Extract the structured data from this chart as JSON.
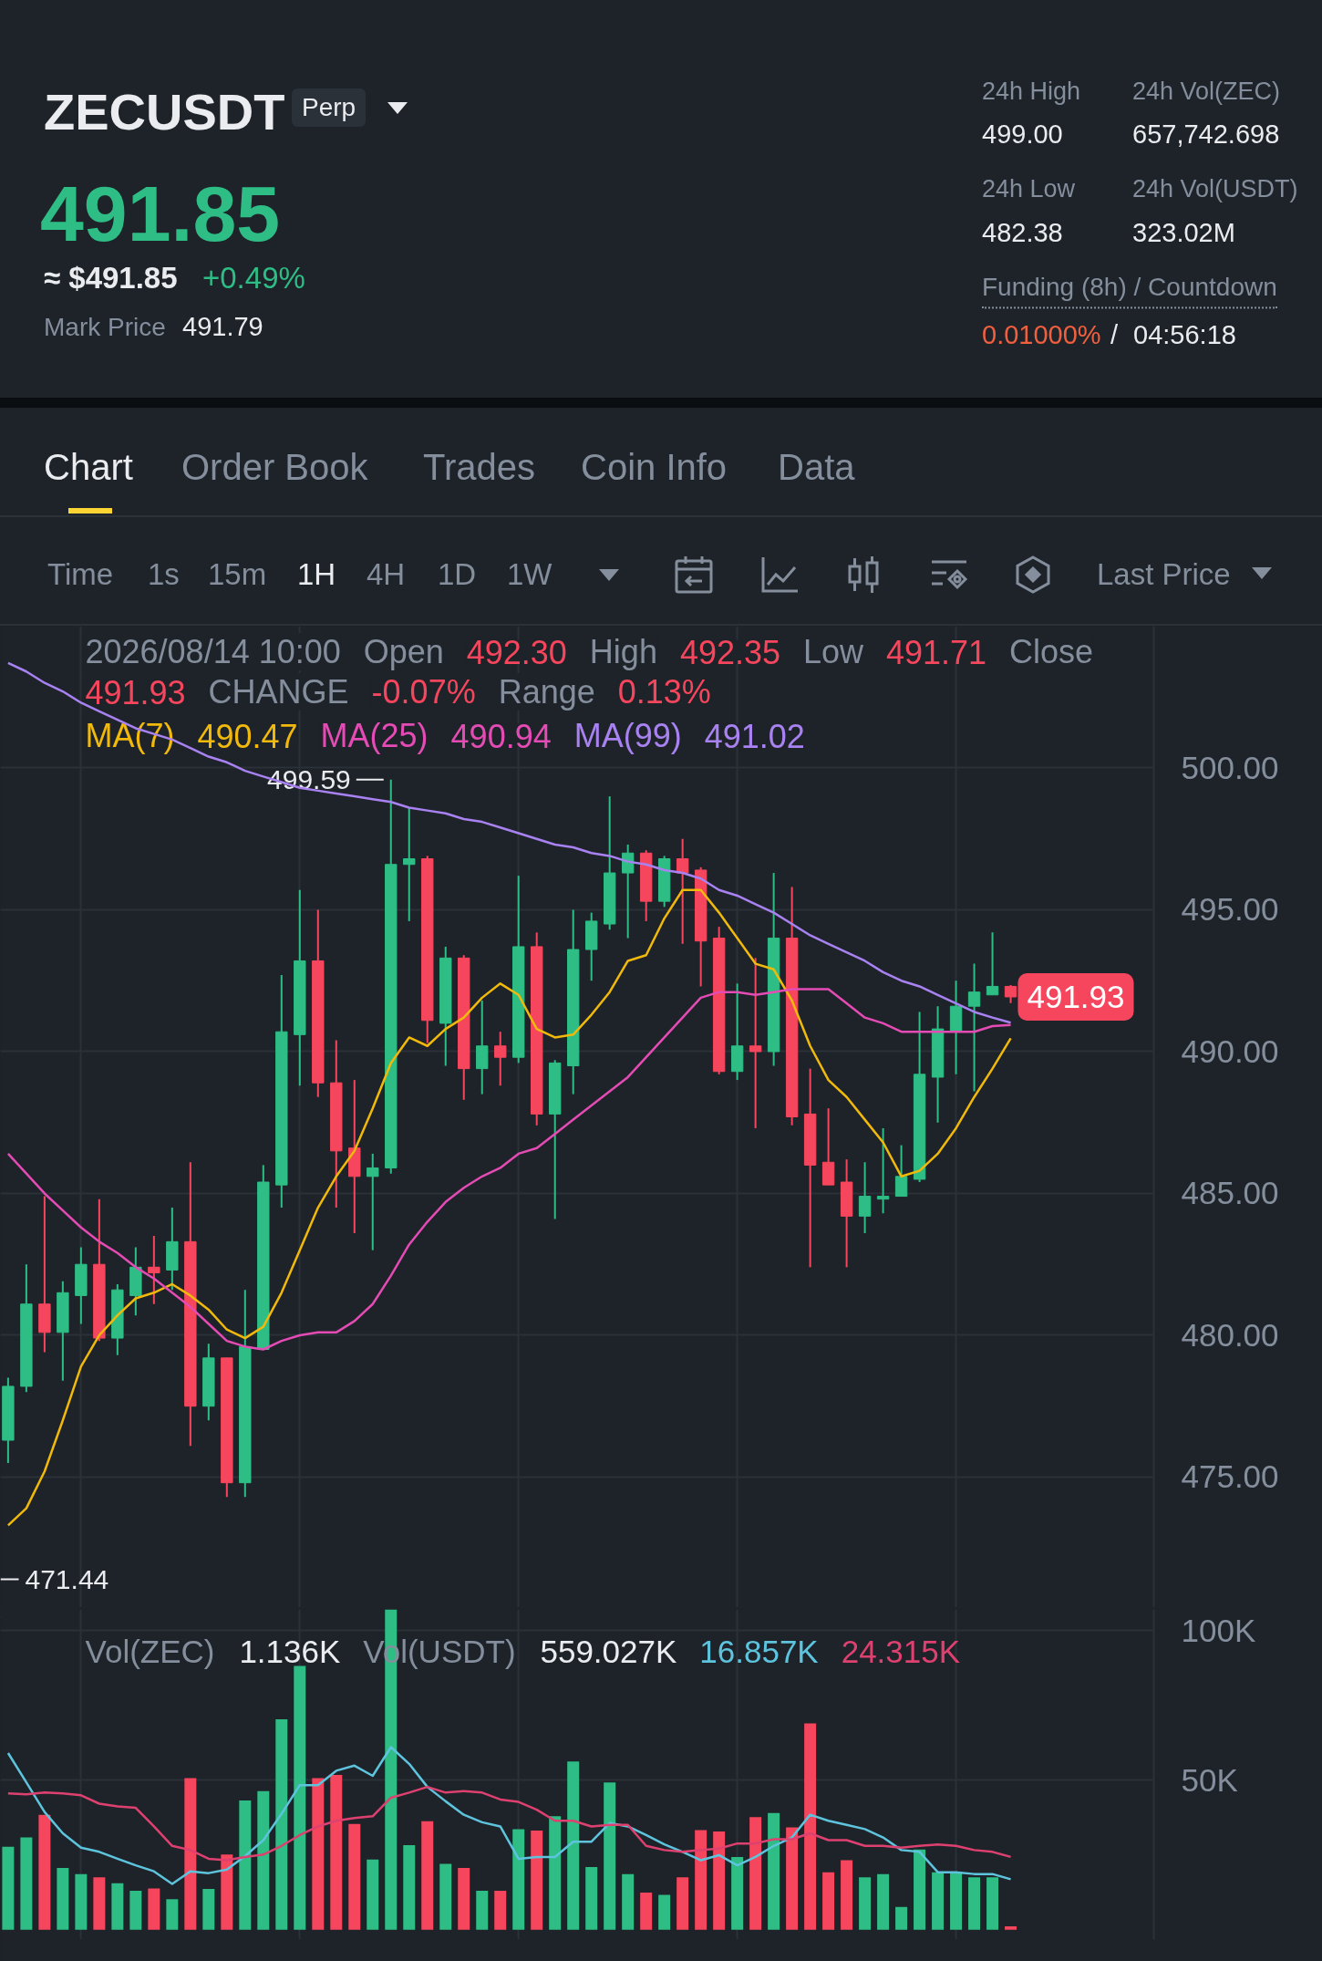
{
  "chart_data": [
    {
      "type": "other",
      "title": "ZECUSDT",
      "annotations": [
        "Perp",
        "491.85",
        "≈ $491.85",
        "+0.49%",
        "Mark Price",
        "491.79",
        "24h High",
        "499.00",
        "24h Vol(ZEC)",
        "657,742.698",
        "24h Low",
        "482.38",
        "24h Vol(USDT)",
        "323.02M",
        "Funding (8h) / Countdown",
        "0.01000%",
        "/",
        "04:56:18",
        "Chart",
        "Order Book",
        "Trades",
        "Coin Info",
        "Data",
        "Time",
        "1s",
        "15m",
        "1H",
        "4H",
        "1D",
        "1W",
        "Last Price"
      ]
    },
    {
      "type": "candlestick",
      "categories": [
        null,
        null,
        null,
        null,
        null,
        null,
        null,
        null,
        null,
        null,
        null,
        null,
        null,
        null,
        null,
        null,
        null,
        null,
        null,
        null,
        null,
        null,
        null,
        null,
        null,
        null,
        null,
        null,
        null,
        null,
        null,
        null,
        null,
        null,
        null,
        null,
        null,
        null,
        null,
        null,
        null,
        null,
        null,
        null,
        null,
        null,
        null,
        null,
        null,
        null,
        null,
        null,
        null,
        null,
        null,
        null
      ],
      "ohlc": [
        [
          476.3,
          478.5,
          475.5,
          478.2
        ],
        [
          478.2,
          482.5,
          478.0,
          481.1
        ],
        [
          481.1,
          484.9,
          479.4,
          480.1
        ],
        [
          480.1,
          481.9,
          478.4,
          481.5
        ],
        [
          481.4,
          483.1,
          480.4,
          482.5
        ],
        [
          482.5,
          484.8,
          479.8,
          479.9
        ],
        [
          479.9,
          481.8,
          479.3,
          481.6
        ],
        [
          481.4,
          483.1,
          480.7,
          482.4
        ],
        [
          482.4,
          483.5,
          481.1,
          482.2
        ],
        [
          482.3,
          484.5,
          481.6,
          483.3
        ],
        [
          483.3,
          486.1,
          476.1,
          477.5
        ],
        [
          477.5,
          479.7,
          477.0,
          479.2
        ],
        [
          479.2,
          479.2,
          474.3,
          474.8
        ],
        [
          474.8,
          481.6,
          474.3,
          479.6
        ],
        [
          479.5,
          486.0,
          479.5,
          485.4
        ],
        [
          485.3,
          492.7,
          484.5,
          490.7
        ],
        [
          490.6,
          495.7,
          488.8,
          493.2
        ],
        [
          493.2,
          495.0,
          488.4,
          488.9
        ],
        [
          488.9,
          490.4,
          484.5,
          486.5
        ],
        [
          486.6,
          489.0,
          483.6,
          485.6
        ],
        [
          485.6,
          486.4,
          483.0,
          485.9
        ],
        [
          485.9,
          499.59,
          485.7,
          496.6
        ],
        [
          496.6,
          498.6,
          494.6,
          496.8
        ],
        [
          496.8,
          496.9,
          490.3,
          491.1
        ],
        [
          491.0,
          493.7,
          489.5,
          493.3
        ],
        [
          493.3,
          493.4,
          488.3,
          489.4
        ],
        [
          489.4,
          491.8,
          488.5,
          490.2
        ],
        [
          490.2,
          490.7,
          488.8,
          489.8
        ],
        [
          489.8,
          496.2,
          489.6,
          493.7
        ],
        [
          493.7,
          494.2,
          487.4,
          487.8
        ],
        [
          487.8,
          489.7,
          484.1,
          489.6
        ],
        [
          489.5,
          495.0,
          488.5,
          493.6
        ],
        [
          493.6,
          494.9,
          492.5,
          494.6
        ],
        [
          494.5,
          499.0,
          494.3,
          496.3
        ],
        [
          496.3,
          497.3,
          494.0,
          497.0
        ],
        [
          497.0,
          497.1,
          494.6,
          495.3
        ],
        [
          495.3,
          496.9,
          495.1,
          496.8
        ],
        [
          496.8,
          497.5,
          493.8,
          496.3
        ],
        [
          496.4,
          496.5,
          492.3,
          493.9
        ],
        [
          494.0,
          494.4,
          489.2,
          489.3
        ],
        [
          489.3,
          492.4,
          489.0,
          490.2
        ],
        [
          490.2,
          493.3,
          487.3,
          490.0
        ],
        [
          490.0,
          496.3,
          489.5,
          494.0
        ],
        [
          494.0,
          495.8,
          487.4,
          487.7
        ],
        [
          487.8,
          489.4,
          482.4,
          486.0
        ],
        [
          486.1,
          488.0,
          485.3,
          485.3
        ],
        [
          485.4,
          486.2,
          482.4,
          484.2
        ],
        [
          484.2,
          486.1,
          483.6,
          484.9
        ],
        [
          484.8,
          487.3,
          484.3,
          484.9
        ],
        [
          484.9,
          486.7,
          484.9,
          485.6
        ],
        [
          485.5,
          491.4,
          485.4,
          489.2
        ],
        [
          489.1,
          491.6,
          487.5,
          490.8
        ],
        [
          490.7,
          492.5,
          489.2,
          491.6
        ],
        [
          491.6,
          493.1,
          488.6,
          492.1
        ],
        [
          492.0,
          494.2,
          492.0,
          492.3
        ],
        [
          492.3,
          492.35,
          491.71,
          491.93
        ]
      ],
      "colors": [
        "#2ebd85",
        "#2ebd85",
        "#f6465d",
        "#2ebd85",
        "#2ebd85",
        "#f6465d",
        "#2ebd85",
        "#2ebd85",
        "#f6465d",
        "#2ebd85",
        "#f6465d",
        "#2ebd85",
        "#f6465d",
        "#2ebd85",
        "#2ebd85",
        "#2ebd85",
        "#2ebd85",
        "#f6465d",
        "#f6465d",
        "#f6465d",
        "#2ebd85",
        "#2ebd85",
        "#2ebd85",
        "#f6465d",
        "#2ebd85",
        "#f6465d",
        "#2ebd85",
        "#f6465d",
        "#2ebd85",
        "#f6465d",
        "#2ebd85",
        "#2ebd85",
        "#2ebd85",
        "#2ebd85",
        "#2ebd85",
        "#f6465d",
        "#2ebd85",
        "#f6465d",
        "#f6465d",
        "#f6465d",
        "#2ebd85",
        "#f6465d",
        "#2ebd85",
        "#f6465d",
        "#f6465d",
        "#f6465d",
        "#f6465d",
        "#2ebd85",
        "#2ebd85",
        "#2ebd85",
        "#2ebd85",
        "#2ebd85",
        "#2ebd85",
        "#2ebd85",
        "#2ebd85",
        "#f6465d"
      ],
      "series": [
        {
          "name": "MA(7) 490.47",
          "type": "line",
          "color": "#f0b90b",
          "values": [
            473.3,
            473.9,
            475.2,
            477.0,
            478.9,
            480.0,
            480.7,
            481.3,
            481.5,
            481.8,
            481.4,
            480.9,
            480.2,
            479.9,
            480.3,
            481.5,
            483.0,
            484.5,
            485.6,
            486.5,
            488.0,
            489.6,
            490.5,
            490.2,
            490.8,
            491.2,
            491.9,
            492.4,
            492.0,
            490.8,
            490.5,
            490.6,
            491.3,
            492.1,
            493.2,
            493.4,
            494.7,
            495.7,
            495.7,
            494.9,
            494.0,
            493.1,
            492.9,
            491.8,
            490.2,
            489.0,
            488.4,
            487.6,
            486.8,
            485.6,
            485.8,
            486.4,
            487.3,
            488.4,
            489.4,
            490.47
          ]
        },
        {
          "name": "MA(25) 490.94",
          "type": "line",
          "color": "#e44bb4",
          "values": [
            486.4,
            485.7,
            485.0,
            484.4,
            483.8,
            483.3,
            482.9,
            482.4,
            482.0,
            481.5,
            481.0,
            480.4,
            479.8,
            479.6,
            479.5,
            479.8,
            480.0,
            480.1,
            480.1,
            480.5,
            481.1,
            482.1,
            483.2,
            484.0,
            484.7,
            485.2,
            485.6,
            485.9,
            486.4,
            486.6,
            487.1,
            487.6,
            488.1,
            488.6,
            489.1,
            489.8,
            490.5,
            491.2,
            491.9,
            492.1,
            492.1,
            492.0,
            492.1,
            492.2,
            492.2,
            492.2,
            491.7,
            491.2,
            491.0,
            490.7,
            490.7,
            490.7,
            490.7,
            490.7,
            490.9,
            490.94
          ]
        },
        {
          "name": "MA(99) 491.02",
          "type": "line",
          "color": "#a982f2",
          "values": [
            503.7,
            503.4,
            503.0,
            502.7,
            502.3,
            502.0,
            501.7,
            501.4,
            501.2,
            501.0,
            500.7,
            500.4,
            500.2,
            499.9,
            499.7,
            499.5,
            499.3,
            499.2,
            499.1,
            499.0,
            498.9,
            498.8,
            498.6,
            498.5,
            498.4,
            498.2,
            498.1,
            497.9,
            497.7,
            497.5,
            497.3,
            497.2,
            497.0,
            496.9,
            496.7,
            496.6,
            496.4,
            496.3,
            496.1,
            495.7,
            495.5,
            495.2,
            494.9,
            494.5,
            494.1,
            493.8,
            493.5,
            493.2,
            492.8,
            492.5,
            492.3,
            492.0,
            491.7,
            491.4,
            491.2,
            491.02
          ]
        }
      ],
      "annotations": [
        "2026/08/14 10:00",
        "Open 492.30",
        "High 492.35",
        "Low 491.71",
        "Close 491.93",
        "CHANGE -0.07%",
        "Range 0.13%",
        "499.59",
        "471.44",
        "491.93"
      ],
      "ylim": [
        470.4,
        505.0
      ],
      "yticks": [
        {
          "value": 475,
          "label": "475.00"
        },
        {
          "value": 480,
          "label": "480.00"
        },
        {
          "value": 485,
          "label": "485.00"
        },
        {
          "value": 490,
          "label": "490.00"
        },
        {
          "value": 495,
          "label": "495.00"
        },
        {
          "value": 500,
          "label": "500.00"
        }
      ],
      "grid": true,
      "legend": "top left"
    },
    {
      "type": "bar",
      "categories": [
        null,
        null,
        null,
        null,
        null,
        null,
        null,
        null,
        null,
        null,
        null,
        null,
        null,
        null,
        null,
        null,
        null,
        null,
        null,
        null,
        null,
        null,
        null,
        null,
        null,
        null,
        null,
        null,
        null,
        null,
        null,
        null,
        null,
        null,
        null,
        null,
        null,
        null,
        null,
        null,
        null,
        null,
        null,
        null,
        null,
        null,
        null,
        null,
        null,
        null,
        null,
        null,
        null,
        null,
        null,
        null
      ],
      "series": [
        {
          "name": "Vol(ZEC) 1.136K",
          "type": "bar",
          "colors": [
            "#2ebd85",
            "#2ebd85",
            "#f6465d",
            "#2ebd85",
            "#2ebd85",
            "#f6465d",
            "#2ebd85",
            "#2ebd85",
            "#f6465d",
            "#2ebd85",
            "#f6465d",
            "#2ebd85",
            "#f6465d",
            "#2ebd85",
            "#2ebd85",
            "#2ebd85",
            "#2ebd85",
            "#f6465d",
            "#f6465d",
            "#f6465d",
            "#2ebd85",
            "#2ebd85",
            "#2ebd85",
            "#f6465d",
            "#2ebd85",
            "#f6465d",
            "#2ebd85",
            "#f6465d",
            "#2ebd85",
            "#f6465d",
            "#2ebd85",
            "#2ebd85",
            "#2ebd85",
            "#2ebd85",
            "#2ebd85",
            "#f6465d",
            "#2ebd85",
            "#f6465d",
            "#f6465d",
            "#f6465d",
            "#2ebd85",
            "#f6465d",
            "#2ebd85",
            "#f6465d",
            "#f6465d",
            "#f6465d",
            "#f6465d",
            "#2ebd85",
            "#2ebd85",
            "#2ebd85",
            "#2ebd85",
            "#2ebd85",
            "#2ebd85",
            "#2ebd85",
            "#2ebd85",
            "#f6465d"
          ],
          "values": [
            27700,
            30800,
            38400,
            20600,
            18600,
            17500,
            15500,
            13000,
            13800,
            10200,
            50600,
            13600,
            25100,
            43200,
            46300,
            70300,
            88100,
            50600,
            51700,
            35300,
            23400,
            107000,
            28200,
            36200,
            22000,
            20600,
            13000,
            13000,
            33600,
            33100,
            37900,
            56200,
            20900,
            49200,
            18600,
            12400,
            11600,
            17500,
            33300,
            32800,
            24300,
            37600,
            39000,
            34200,
            68900,
            19200,
            23200,
            17500,
            18600,
            7600,
            26800,
            19200,
            19200,
            17500,
            17500,
            1136
          ]
        },
        {
          "name": "16.857K",
          "type": "line",
          "color": "#5ec4de",
          "values": [
            59000,
            49200,
            39300,
            32200,
            27400,
            26000,
            23700,
            21500,
            19500,
            15300,
            19500,
            18900,
            20100,
            24600,
            29900,
            38700,
            48300,
            48300,
            53100,
            54800,
            51400,
            61000,
            55400,
            47700,
            42900,
            38400,
            35900,
            34500,
            23700,
            24300,
            24300,
            29400,
            29400,
            35600,
            34500,
            31600,
            28500,
            26000,
            23200,
            24900,
            21500,
            24300,
            28000,
            30800,
            38400,
            36400,
            35000,
            33600,
            30800,
            26600,
            26000,
            19200,
            19200,
            18600,
            18600,
            16857
          ]
        },
        {
          "name": "24.315K",
          "type": "line",
          "color": "#de4170",
          "values": [
            45500,
            45200,
            45800,
            45500,
            44900,
            42100,
            41200,
            40700,
            34500,
            28000,
            26600,
            23700,
            23200,
            24300,
            25100,
            28000,
            31600,
            34500,
            36400,
            37300,
            37900,
            44100,
            45800,
            47700,
            45800,
            46300,
            45800,
            43500,
            42700,
            40100,
            36400,
            36400,
            34500,
            35000,
            35000,
            28000,
            26600,
            26000,
            26600,
            27100,
            28800,
            28800,
            30200,
            30200,
            32200,
            29900,
            29900,
            28000,
            28000,
            27400,
            28000,
            28500,
            28000,
            26600,
            26000,
            24315
          ]
        }
      ],
      "annotations": [
        "Vol(USDT) 559.027K"
      ],
      "ylim": [
        -3300,
        107000
      ],
      "yticks": [
        {
          "value": 50000,
          "label": "50K"
        },
        {
          "value": 100000,
          "label": "100K"
        }
      ],
      "grid": true,
      "legend": "top left"
    }
  ]
}
